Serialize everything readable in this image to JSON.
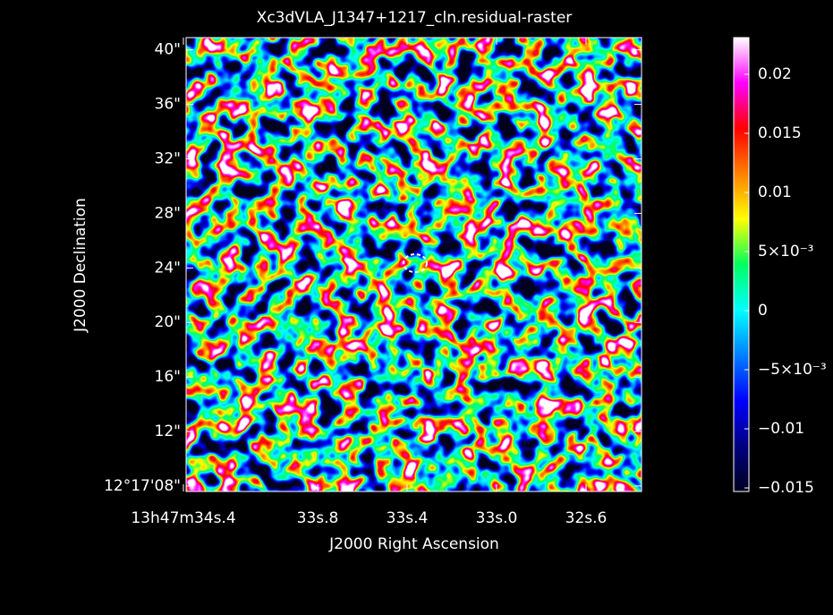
{
  "chart_data": {
    "type": "image",
    "title": "Xc3dVLA_J1347+1217_cln.residual-raster",
    "x_label": "J2000 Right Ascension",
    "y_label": "J2000 Declination",
    "xlim": [
      34.388,
      32.352
    ],
    "xticks": [
      {
        "value": 34.4,
        "label": "13h47m34s.4"
      },
      {
        "value": 33.8,
        "label": "33s.8"
      },
      {
        "value": 33.4,
        "label": "33s.4"
      },
      {
        "value": 33.0,
        "label": "33s.0"
      },
      {
        "value": 32.6,
        "label": "32s.6"
      }
    ],
    "ylim": [
      7.6,
      40.9
    ],
    "yticks": [
      {
        "value": 8,
        "label": "12°17'08\""
      },
      {
        "value": 12,
        "label": "12\""
      },
      {
        "value": 16,
        "label": "16\""
      },
      {
        "value": 20,
        "label": "20\""
      },
      {
        "value": 24,
        "label": "24\""
      },
      {
        "value": 28,
        "label": "28\""
      },
      {
        "value": 32,
        "label": "32\""
      },
      {
        "value": 36,
        "label": "36\""
      },
      {
        "value": 40,
        "label": "40\""
      }
    ],
    "colorbar_lim": [
      -0.0153,
      0.0231
    ],
    "colorbar_ticks": [
      {
        "value": -0.015,
        "label": "−0.015"
      },
      {
        "value": -0.01,
        "label": "−0.01"
      },
      {
        "value": -0.005,
        "label": "−5×10⁻³"
      },
      0,
      {
        "value": 0.005,
        "label": "5×10⁻³"
      },
      0.01,
      0.015,
      0.02
    ],
    "colormap": [
      "#000020",
      "#000080",
      "#0000ff",
      "#0080ff",
      "#00ffff",
      "#00ff60",
      "#ffff00",
      "#ff8000",
      "#ff0000",
      "#ff00ff",
      "#ffffff"
    ]
  }
}
